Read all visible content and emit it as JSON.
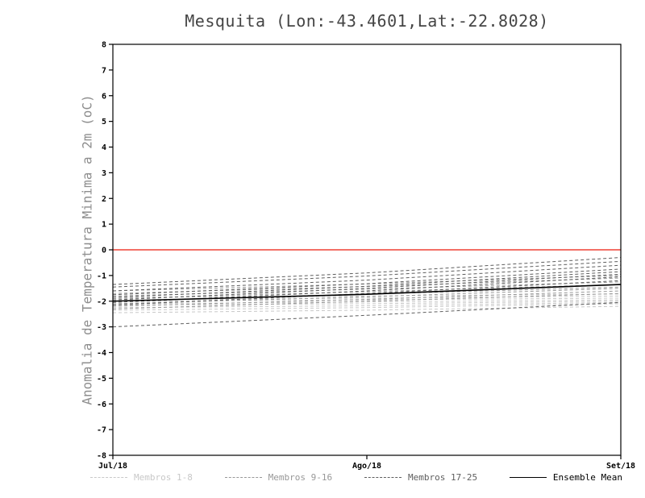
{
  "chart_data": {
    "type": "line",
    "title": "Mesquita (Lon:-43.4601,Lat:-22.8028)",
    "ylabel": "Anomalia de Temperatura Minima a 2m (oC)",
    "xlabel": "",
    "x_tick_labels": [
      "Jul/18",
      "Ago/18",
      "Set/18"
    ],
    "ylim": [
      -8,
      8
    ],
    "y_tick_step": 1,
    "grid": false,
    "zero_line": {
      "value": 0,
      "color": "#ef4135"
    },
    "groups": [
      {
        "name": "Membros 1-8",
        "color": "#c8c8c8",
        "style": "dashed"
      },
      {
        "name": "Membros 9-16",
        "color": "#989898",
        "style": "dashed"
      },
      {
        "name": "Membros 17-25",
        "color": "#5e5e5e",
        "style": "dashed"
      },
      {
        "name": "Ensemble Mean",
        "color": "#000000",
        "style": "solid"
      }
    ],
    "series": [
      {
        "group": "Membros 1-8",
        "values": [
          -2.45,
          -2.35,
          -2.2
        ]
      },
      {
        "group": "Membros 1-8",
        "values": [
          -2.35,
          -2.25,
          -2.1
        ]
      },
      {
        "group": "Membros 1-8",
        "values": [
          -2.25,
          -2.18,
          -2.05
        ]
      },
      {
        "group": "Membros 1-8",
        "values": [
          -2.15,
          -2.1,
          -2.0
        ]
      },
      {
        "group": "Membros 1-8",
        "values": [
          -2.1,
          -2.03,
          -1.95
        ]
      },
      {
        "group": "Membros 1-8",
        "values": [
          -2.0,
          -1.95,
          -1.88
        ]
      },
      {
        "group": "Membros 1-8",
        "values": [
          -1.95,
          -1.88,
          -1.8
        ]
      },
      {
        "group": "Membros 1-8",
        "values": [
          -1.85,
          -1.8,
          -1.72
        ]
      },
      {
        "group": "Membros 9-16",
        "values": [
          -2.3,
          -2.0,
          -1.7
        ]
      },
      {
        "group": "Membros 9-16",
        "values": [
          -2.2,
          -1.93,
          -1.6
        ]
      },
      {
        "group": "Membros 9-16",
        "values": [
          -2.1,
          -1.83,
          -1.5
        ]
      },
      {
        "group": "Membros 9-16",
        "values": [
          -2.0,
          -1.73,
          -1.45
        ]
      },
      {
        "group": "Membros 9-16",
        "values": [
          -1.9,
          -1.63,
          -1.35
        ]
      },
      {
        "group": "Membros 9-16",
        "values": [
          -1.8,
          -1.53,
          -1.25
        ]
      },
      {
        "group": "Membros 9-16",
        "values": [
          -1.7,
          -1.43,
          -1.1
        ]
      },
      {
        "group": "Membros 9-16",
        "values": [
          -1.6,
          -1.33,
          -1.0
        ]
      },
      {
        "group": "Membros 17-25",
        "values": [
          -3.0,
          -2.55,
          -2.05
        ]
      },
      {
        "group": "Membros 17-25",
        "values": [
          -2.15,
          -1.7,
          -1.2
        ]
      },
      {
        "group": "Membros 17-25",
        "values": [
          -2.05,
          -1.6,
          -1.05
        ]
      },
      {
        "group": "Membros 17-25",
        "values": [
          -1.95,
          -1.5,
          -0.95
        ]
      },
      {
        "group": "Membros 17-25",
        "values": [
          -1.85,
          -1.42,
          -0.85
        ]
      },
      {
        "group": "Membros 17-25",
        "values": [
          -1.75,
          -1.32,
          -0.75
        ]
      },
      {
        "group": "Membros 17-25",
        "values": [
          -1.6,
          -1.18,
          -0.6
        ]
      },
      {
        "group": "Membros 17-25",
        "values": [
          -1.45,
          -1.02,
          -0.45
        ]
      },
      {
        "group": "Membros 17-25",
        "values": [
          -1.35,
          -0.9,
          -0.3
        ]
      }
    ],
    "ensemble_mean": {
      "label": "Ensemble Mean",
      "values": [
        -2.0,
        -1.73,
        -1.35
      ]
    }
  },
  "legend": {
    "items": [
      {
        "label": "Membros 1-8",
        "color": "#c8c8c8",
        "style": "dashed"
      },
      {
        "label": "Membros 9-16",
        "color": "#989898",
        "style": "dashed"
      },
      {
        "label": "Membros 17-25",
        "color": "#5e5e5e",
        "style": "dashed"
      },
      {
        "label": "Ensemble Mean",
        "color": "#000000",
        "style": "solid"
      }
    ]
  }
}
